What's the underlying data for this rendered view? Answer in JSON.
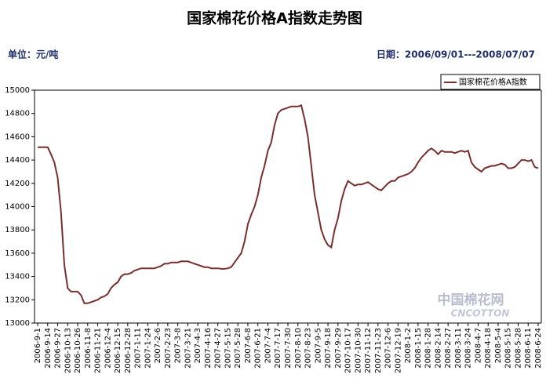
{
  "chart_data": {
    "type": "line",
    "title": "国家棉花价格A指数走势图",
    "unit_label": "单位：元/吨",
    "date_label": "日期：2006/09/01---2008/07/07",
    "watermark": "中国棉花网",
    "watermark_sub": "CNCOTTON",
    "legend_position": "upper right",
    "categories": [
      "2006-9-1",
      null,
      null,
      "2006-9-14",
      null,
      null,
      "2006-9-27",
      null,
      null,
      "2006-10-13",
      null,
      null,
      "2006-10-26",
      null,
      null,
      "2006-11-8",
      null,
      null,
      "2006-11-21",
      null,
      null,
      "2006-12-4",
      null,
      null,
      "2006-12-15",
      null,
      null,
      "2006-12-28",
      null,
      null,
      "2007-1-11",
      null,
      null,
      "2007-1-24",
      null,
      null,
      "2007-2-6",
      null,
      null,
      "2007-2-23",
      null,
      null,
      "2007-3-8",
      null,
      null,
      "2007-3-21",
      null,
      null,
      "2007-4-3",
      null,
      null,
      "2007-4-16",
      null,
      null,
      "2007-4-27",
      null,
      null,
      "2007-5-15",
      null,
      null,
      "2007-5-28",
      null,
      null,
      "2007-6-8",
      null,
      null,
      "2007-6-21",
      null,
      null,
      "2007-7-4",
      null,
      null,
      "2007-7-17",
      null,
      null,
      "2007-7-30",
      null,
      null,
      "2007-8-10",
      null,
      null,
      "2007-8-23",
      null,
      null,
      "2007-9-5",
      null,
      null,
      "2007-9-18",
      null,
      null,
      "2007-9-29",
      null,
      null,
      "2007-10-17",
      null,
      null,
      "2007-10-30",
      null,
      null,
      "2007-11-12",
      null,
      null,
      "2007-11-23",
      null,
      null,
      "2007-12-6",
      null,
      null,
      "2007-12-19",
      null,
      null,
      "2008-1-2",
      null,
      null,
      "2008-1-15",
      null,
      null,
      "2008-1-28",
      null,
      null,
      "2008-2-14",
      null,
      null,
      "2008-2-27",
      null,
      null,
      "2008-3-11",
      null,
      null,
      "2008-3-24",
      null,
      null,
      "2008-4-7",
      null,
      null,
      "2008-4-18",
      null,
      null,
      "2008-5-4",
      null,
      null,
      "2008-5-15",
      null,
      null,
      "2008-5-28",
      null,
      null,
      "2008-6-11",
      null,
      null,
      "2008-6-24"
    ],
    "series": [
      {
        "name": "国家棉花价格A指数",
        "color": "#7a2f2f",
        "values": [
          14510,
          14510,
          14510,
          14510,
          14450,
          14380,
          14250,
          13950,
          13500,
          13300,
          13270,
          13270,
          13270,
          13240,
          13170,
          13170,
          13180,
          13190,
          13200,
          13220,
          13230,
          13250,
          13300,
          13330,
          13350,
          13400,
          13420,
          13420,
          13430,
          13450,
          13460,
          13470,
          13470,
          13470,
          13470,
          13470,
          13480,
          13490,
          13510,
          13510,
          13520,
          13520,
          13520,
          13530,
          13530,
          13530,
          13520,
          13510,
          13500,
          13490,
          13480,
          13480,
          13470,
          13470,
          13470,
          13465,
          13465,
          13470,
          13480,
          13520,
          13560,
          13600,
          13700,
          13850,
          13930,
          14000,
          14100,
          14250,
          14350,
          14480,
          14550,
          14700,
          14800,
          14830,
          14840,
          14850,
          14860,
          14860,
          14860,
          14870,
          14750,
          14600,
          14350,
          14100,
          13950,
          13800,
          13720,
          13670,
          13650,
          13800,
          13900,
          14050,
          14150,
          14220,
          14200,
          14180,
          14190,
          14190,
          14200,
          14210,
          14190,
          14170,
          14150,
          14140,
          14170,
          14200,
          14220,
          14220,
          14250,
          14260,
          14270,
          14280,
          14300,
          14330,
          14380,
          14420,
          14450,
          14480,
          14500,
          14480,
          14450,
          14480,
          14470,
          14470,
          14470,
          14460,
          14470,
          14480,
          14470,
          14480,
          14380,
          14340,
          14320,
          14300,
          14330,
          14340,
          14350,
          14350,
          14360,
          14370,
          14360,
          14330,
          14330,
          14340,
          14370,
          14400,
          14400,
          14390,
          14400,
          14340,
          14330
        ]
      }
    ],
    "ylim": [
      13000,
      15000
    ],
    "yticks": [
      13000,
      13200,
      13400,
      13600,
      13800,
      14000,
      14200,
      14400,
      14600,
      14800,
      15000
    ],
    "grid": false
  }
}
